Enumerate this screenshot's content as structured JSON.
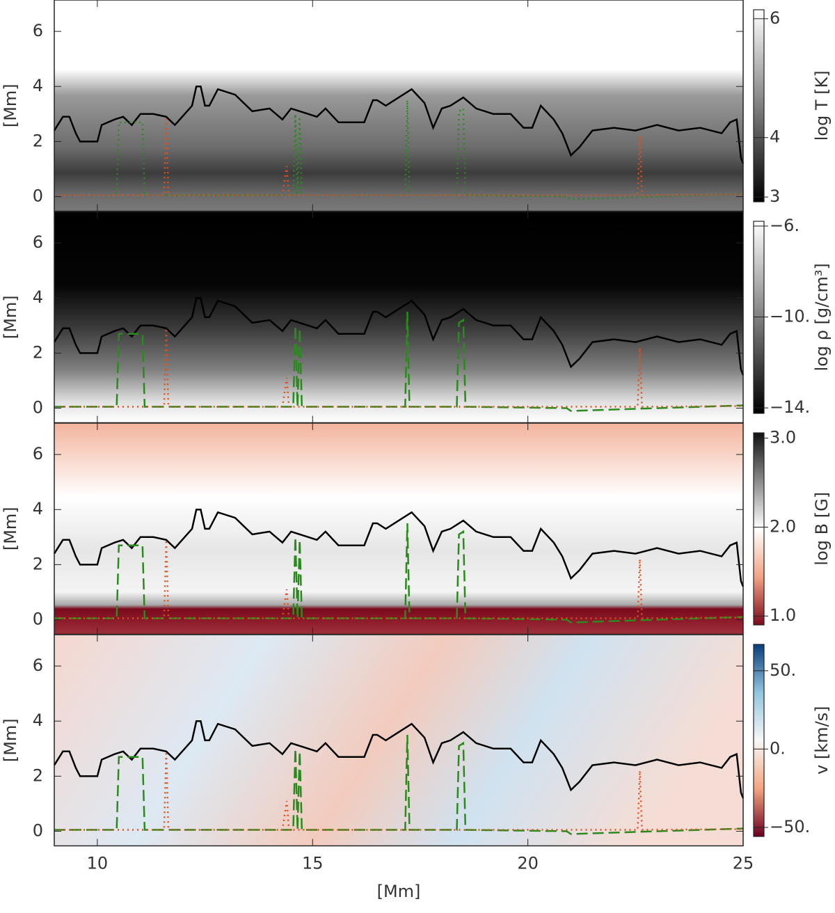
{
  "chart_data": {
    "type": "multi-panel",
    "xlabel": "[Mm]",
    "xlim": [
      9,
      25
    ],
    "xticks": [
      10,
      15,
      20,
      25
    ],
    "ylim": [
      -0.53,
      7.14
    ],
    "series": [
      {
        "color": "#000000",
        "x": [
          9.0,
          9.2,
          9.35,
          9.5,
          9.6,
          10.0,
          10.1,
          10.4,
          10.6,
          10.8,
          11.0,
          11.3,
          11.6,
          11.8,
          12.2,
          12.3,
          12.4,
          12.5,
          12.6,
          12.8,
          13.2,
          13.6,
          14.0,
          14.3,
          14.5,
          14.9,
          15.1,
          15.3,
          15.6,
          16.0,
          16.2,
          16.4,
          16.5,
          16.7,
          17.0,
          17.3,
          17.6,
          17.8,
          18.0,
          18.2,
          18.5,
          18.8,
          19.2,
          19.6,
          19.9,
          20.1,
          20.3,
          20.6,
          20.8,
          21.0,
          21.2,
          21.5,
          22.0,
          22.5,
          23.0,
          23.5,
          24.0,
          24.5,
          24.7,
          24.85,
          24.95,
          25.0
        ],
        "values": [
          2.4,
          2.9,
          2.9,
          2.3,
          2.0,
          2.0,
          2.6,
          2.8,
          2.9,
          2.6,
          3.0,
          3.0,
          2.9,
          2.6,
          3.3,
          4.0,
          4.0,
          3.3,
          3.3,
          3.9,
          3.7,
          3.1,
          3.2,
          2.8,
          3.2,
          3.0,
          2.9,
          3.2,
          2.7,
          2.7,
          2.7,
          3.5,
          3.5,
          3.3,
          3.6,
          3.9,
          3.4,
          2.5,
          3.2,
          3.3,
          3.6,
          3.2,
          3.0,
          3.0,
          2.5,
          2.5,
          3.3,
          2.8,
          2.3,
          1.5,
          1.8,
          2.4,
          2.5,
          2.4,
          2.6,
          2.4,
          2.5,
          2.3,
          2.7,
          2.8,
          1.4,
          1.2
        ]
      },
      {
        "color": "#2a8a1e",
        "x": [
          9.0,
          10.45,
          10.5,
          10.75,
          10.8,
          11.05,
          11.1,
          14.55,
          14.6,
          14.65,
          14.7,
          14.75,
          17.15,
          17.2,
          17.25,
          18.35,
          18.4,
          18.5,
          18.55,
          20.9,
          21.0,
          25.0
        ],
        "values": [
          0.05,
          0.05,
          2.7,
          2.7,
          2.7,
          2.7,
          0.05,
          0.05,
          3.0,
          0.05,
          2.9,
          0.05,
          0.05,
          3.5,
          0.05,
          0.05,
          3.1,
          3.2,
          0.05,
          0.0,
          -0.1,
          0.1
        ]
      },
      {
        "color": "#e0501a",
        "x": [
          9.0,
          11.55,
          11.6,
          11.65,
          14.3,
          14.4,
          14.45,
          22.55,
          22.6,
          22.65,
          25.0
        ],
        "values": [
          0.05,
          0.05,
          2.9,
          0.05,
          0.05,
          1.1,
          0.05,
          0.05,
          2.2,
          0.05,
          0.08
        ]
      }
    ],
    "panels": [
      {
        "ylabel": "[Mm]",
        "yticks": [
          0,
          2,
          4,
          6
        ],
        "dashes": [
          "solid",
          "dotted",
          "dotted"
        ],
        "colorbar_label": "log T [K]",
        "clim": [
          2.92,
          6.15
        ],
        "cticks": [
          3,
          4,
          6
        ],
        "colormap": [
          "#000000",
          "#ffffff"
        ]
      },
      {
        "ylabel": "[Mm]",
        "yticks": [
          0,
          2,
          4,
          6
        ],
        "dashes": [
          "solid",
          "dashed",
          "dotted"
        ],
        "colorbar_label": "log ρ [g/cm³]",
        "clim": [
          -14.24,
          -5.79
        ],
        "cticks": [
          {
            "value": -6,
            "label": "−6."
          },
          {
            "value": -10,
            "label": "−10."
          },
          {
            "value": -14,
            "label": "−14."
          }
        ],
        "colormap": [
          "#000000",
          "#ffffff"
        ]
      },
      {
        "ylabel": "[Mm]",
        "yticks": [
          0,
          2,
          4,
          6
        ],
        "dashes": [
          "solid",
          "dashed",
          "dotted"
        ],
        "colorbar_label": "log B [G]",
        "clim": [
          0.9,
          3.06
        ],
        "cticks": [
          {
            "value": 3,
            "label": "3.0"
          },
          {
            "value": 2,
            "label": "2.0"
          },
          {
            "value": 1,
            "label": "1.0"
          }
        ],
        "colormap": [
          "#7a0a1c",
          "#f2a386",
          "#ffffff",
          "#8a8a8a",
          "#111111"
        ]
      },
      {
        "ylabel": "[Mm]",
        "yticks": [
          0,
          2,
          4,
          6
        ],
        "dashes": [
          "solid",
          "dashed",
          "dotted"
        ],
        "colorbar_label": "v [km/s]",
        "clim": [
          -55.8,
          66.8
        ],
        "cticks": [
          {
            "value": 50,
            "label": "50."
          },
          {
            "value": 0,
            "label": "0."
          },
          {
            "value": -50,
            "label": "−50."
          }
        ],
        "colormap": [
          "#6a0020",
          "#f4a582",
          "#f7f7f7",
          "#92c5de",
          "#0a3d7a"
        ]
      }
    ]
  }
}
